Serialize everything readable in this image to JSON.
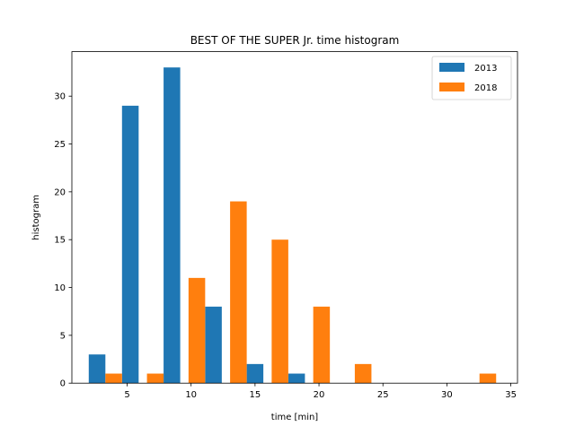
{
  "chart_data": {
    "type": "bar",
    "title": "BEST OF THE SUPER Jr. time histogram",
    "xlabel": "time [min]",
    "ylabel": "histogram",
    "xlim": [
      0.68,
      35.52
    ],
    "ylim": [
      0,
      34.65
    ],
    "xticks": [
      5,
      10,
      15,
      20,
      25,
      30,
      35
    ],
    "yticks": [
      0,
      5,
      10,
      15,
      20,
      25,
      30
    ],
    "bar_width": 1.3,
    "legend": {
      "position": "top-right"
    },
    "grid": false,
    "series": [
      {
        "name": "2013",
        "color": "#1f77b4",
        "x": [
          2.65,
          5.25,
          8.5,
          11.75,
          15.0,
          18.25
        ],
        "values": [
          3,
          29,
          33,
          8,
          2,
          1
        ]
      },
      {
        "name": "2018",
        "color": "#ff7f0e",
        "x": [
          3.95,
          7.2,
          10.45,
          13.7,
          16.95,
          20.2,
          23.45,
          33.2
        ],
        "values": [
          1,
          1,
          11,
          19,
          15,
          8,
          2,
          1
        ]
      }
    ]
  }
}
